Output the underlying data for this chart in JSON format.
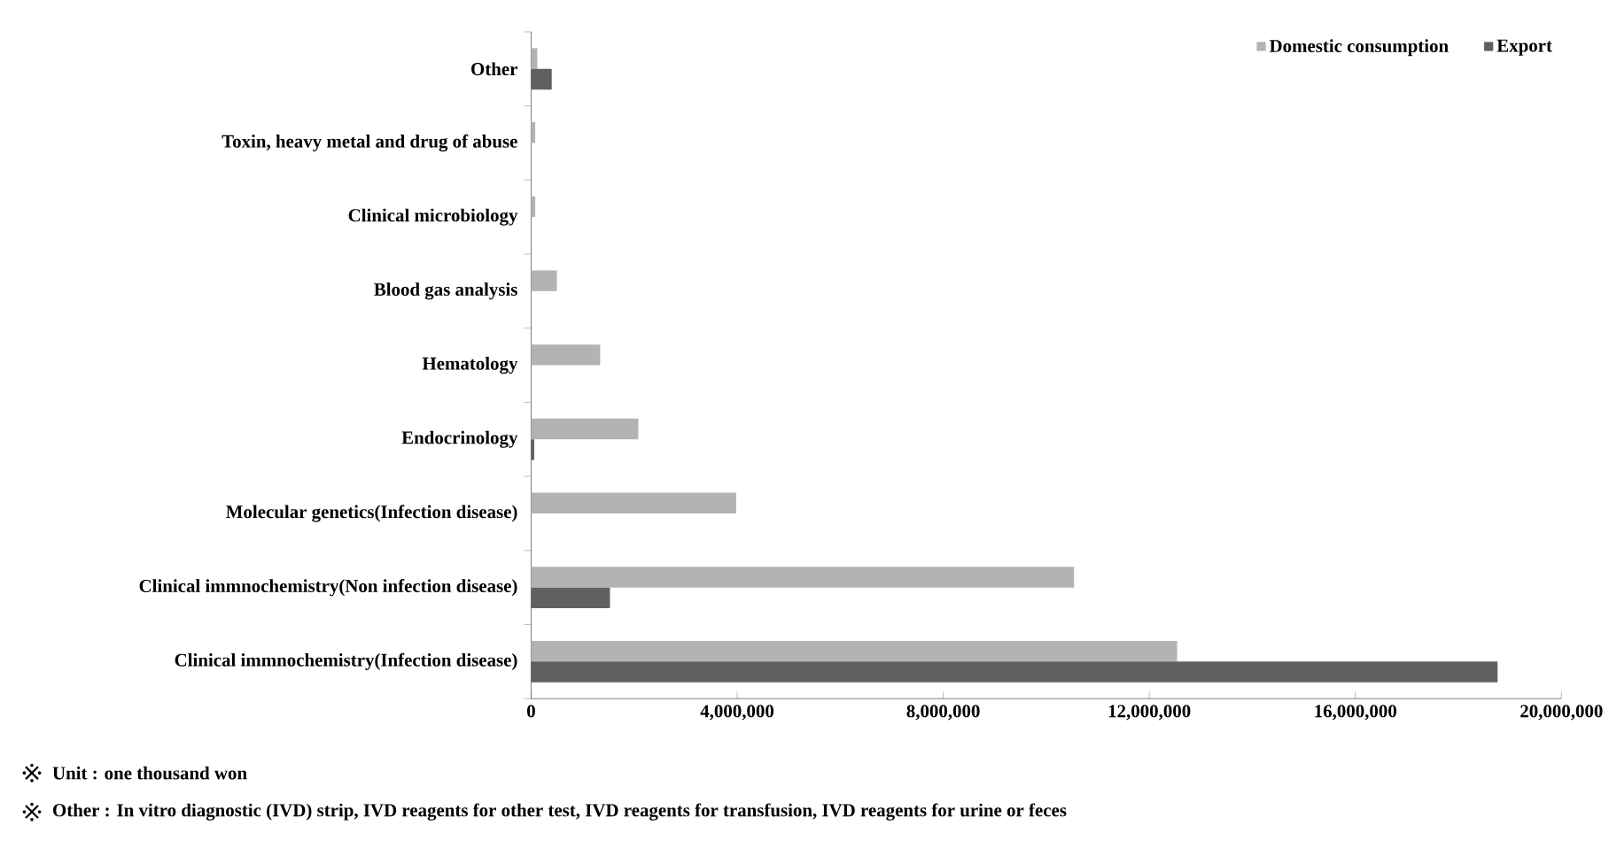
{
  "chart_data": {
    "type": "bar",
    "orientation": "horizontal",
    "categories": [
      "Other",
      "Toxin, heavy metal and drug of abuse",
      "Clinical microbiology",
      "Blood gas analysis",
      "Hematology",
      "Endocrinology",
      "Molecular genetics(Infection disease)",
      "Clinical immnochemistry(Non infection disease)",
      "Clinical immnochemistry(Infection disease)"
    ],
    "series": [
      {
        "name": "Domestic consumption",
        "color": "#b3b3b3",
        "values": [
          120000,
          80000,
          80000,
          500000,
          1340000,
          2080000,
          3980000,
          10540000,
          12540000
        ]
      },
      {
        "name": "Export",
        "color": "#606060",
        "values": [
          400000,
          0,
          0,
          0,
          0,
          60000,
          0,
          1530000,
          18760000
        ]
      }
    ],
    "xlim": [
      0,
      20000000
    ],
    "xticks": [
      0,
      {
        "value": 4000000,
        "label": "4,000,000"
      },
      {
        "value": 8000000,
        "label": "8,000,000"
      },
      {
        "value": 12000000,
        "label": "12,000,000"
      },
      {
        "value": 16000000,
        "label": "16,000,000"
      },
      {
        "value": 20000000,
        "label": "20,000,000"
      }
    ],
    "legend": "top right",
    "grid": false,
    "annotations": [
      "Unit : one thousand won",
      "Other : In vitro diagnostic (IVD) strip, IVD reagents for other test, IVD reagents for transfusion, IVD reagents for urine or feces"
    ]
  }
}
